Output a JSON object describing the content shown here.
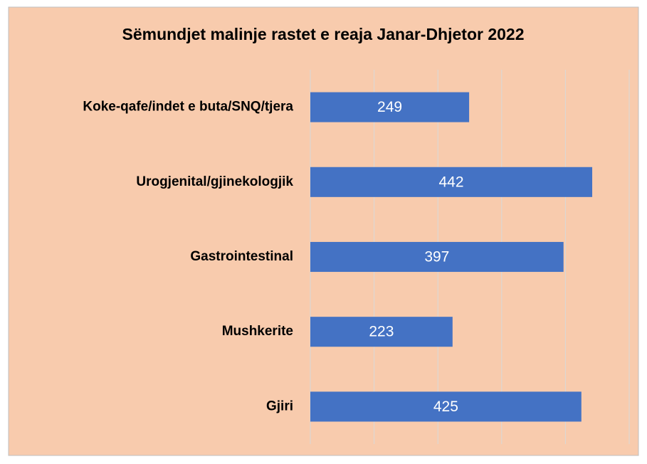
{
  "chart_data": {
    "type": "bar",
    "orientation": "horizontal",
    "title": "Sëmundjet malinje rastet e reaja Janar-Dhjetor 2022",
    "categories": [
      "Koke-qafe/indet e buta/SNQ/tjera",
      "Urogjenital/gjinekologjik",
      "Gastrointestinal",
      "Mushkerite",
      "Gjiri"
    ],
    "values": [
      249,
      442,
      397,
      223,
      425
    ],
    "color": "#4472c4",
    "xlim": [
      0,
      500
    ],
    "xticks": [
      0,
      100,
      200,
      300,
      400,
      500
    ],
    "grid": true
  }
}
